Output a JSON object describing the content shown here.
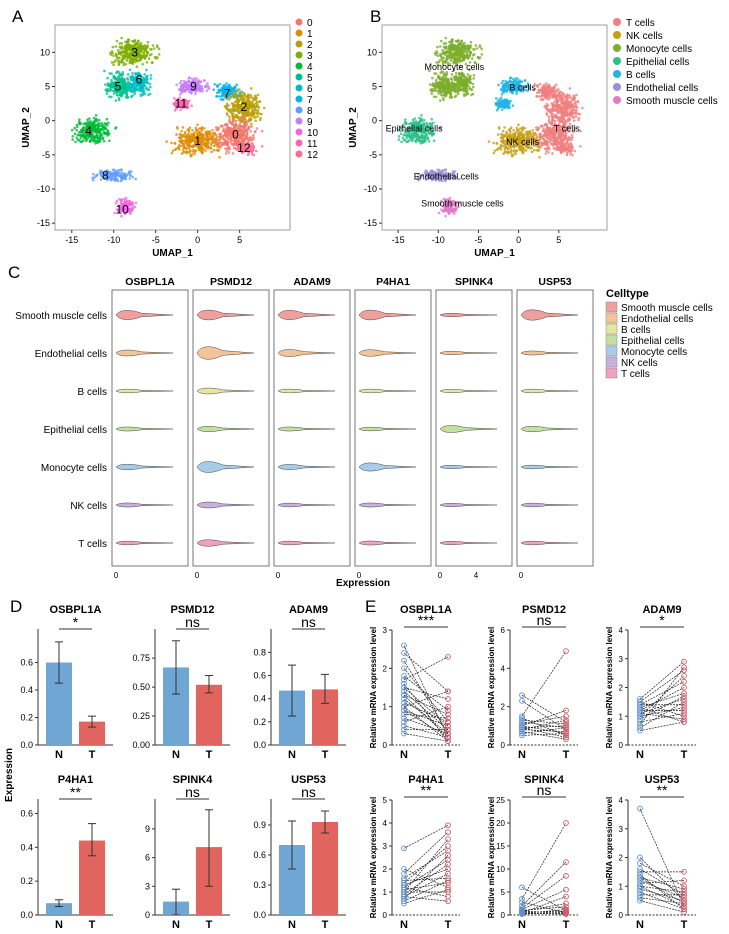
{
  "panels": {
    "A": "A",
    "B": "B",
    "C": "C",
    "D": "D",
    "E": "E"
  },
  "colors": {
    "bar_N": "#6fa6d3",
    "bar_T": "#e2645e",
    "legend_A": [
      "#f8766d",
      "#de8c00",
      "#b79f00",
      "#7cae00",
      "#00ba38",
      "#00c08b",
      "#00bfc4",
      "#00b4f0",
      "#619cff",
      "#c77cff",
      "#f564e3",
      "#ff64b0",
      "#ff6c91"
    ],
    "celltypes": [
      "#f08080",
      "#c5a015",
      "#7cae2a",
      "#2bbf8a",
      "#1fb5e6",
      "#9b8fd8",
      "#e07cc8"
    ],
    "violin": [
      "#f0a09c",
      "#f2c49a",
      "#e6e6a0",
      "#c4e0a0",
      "#a8cce8",
      "#c8b0dc",
      "#f0a0c0"
    ],
    "pair_N": "#5b8fd0",
    "pair_T": "#d05868"
  },
  "chart_data": [
    {
      "id": "A",
      "type": "scatter",
      "title": "",
      "xlabel": "UMAP_1",
      "ylabel": "UMAP_2",
      "xlim": [
        -17,
        11
      ],
      "ylim": [
        -16,
        14
      ],
      "xticks": [
        "-15",
        "-10",
        "-5",
        "0",
        "5"
      ],
      "yticks": [
        "-15",
        "-10",
        "-5",
        "0",
        "5",
        "10"
      ],
      "legend": [
        "0",
        "1",
        "2",
        "3",
        "4",
        "5",
        "6",
        "7",
        "8",
        "9",
        "10",
        "11",
        "12"
      ],
      "cluster_labels": [
        {
          "label": "3",
          "x": -7.5,
          "y": 10
        },
        {
          "label": "5",
          "x": -9.5,
          "y": 5
        },
        {
          "label": "6",
          "x": -7,
          "y": 6
        },
        {
          "label": "9",
          "x": -0.5,
          "y": 5
        },
        {
          "label": "7",
          "x": 3.5,
          "y": 4
        },
        {
          "label": "11",
          "x": -2,
          "y": 2.5
        },
        {
          "label": "2",
          "x": 5.5,
          "y": 2
        },
        {
          "label": "4",
          "x": -13,
          "y": -1.5
        },
        {
          "label": "1",
          "x": 0,
          "y": -3
        },
        {
          "label": "0",
          "x": 4.5,
          "y": -2
        },
        {
          "label": "12",
          "x": 5.5,
          "y": -4
        },
        {
          "label": "8",
          "x": -11,
          "y": -8
        },
        {
          "label": "10",
          "x": -9,
          "y": -13
        }
      ]
    },
    {
      "id": "B",
      "type": "scatter",
      "title": "",
      "xlabel": "UMAP_1",
      "ylabel": "UMAP_2",
      "xlim": [
        -17,
        11
      ],
      "ylim": [
        -16,
        14
      ],
      "xticks": [
        "-15",
        "-10",
        "-5",
        "0",
        "5"
      ],
      "yticks": [
        "-15",
        "-10",
        "-5",
        "0",
        "5",
        "10"
      ],
      "legend": [
        "T cells",
        "NK cells",
        "Monocyte cells",
        "Epithelial cells",
        "B cells",
        "Endothelial cells",
        "Smooth muscle cells"
      ],
      "cluster_labels": [
        {
          "label": "Monocyte cells",
          "x": -8,
          "y": 8
        },
        {
          "label": "B cells",
          "x": 0.5,
          "y": 5
        },
        {
          "label": "T cells",
          "x": 6,
          "y": -1
        },
        {
          "label": "Epithelial cells",
          "x": -13,
          "y": -1
        },
        {
          "label": "NK cells",
          "x": 0.5,
          "y": -3
        },
        {
          "label": "Endothelial cells",
          "x": -9,
          "y": -8
        },
        {
          "label": "Smooth muscle cells",
          "x": -7,
          "y": -12
        }
      ]
    },
    {
      "id": "C",
      "type": "violin",
      "xlabel": "Expression",
      "genes": [
        "OSBPL1A",
        "PSMD12",
        "ADAM9",
        "P4HA1",
        "SPINK4",
        "USP53"
      ],
      "celltypes": [
        "Smooth muscle cells",
        "Endothelial cells",
        "B cells",
        "Epithelial cells",
        "Monocyte cells",
        "NK cells",
        "T cells"
      ],
      "legend_title": "Celltype",
      "x_ticks": [
        [
          "0"
        ],
        [
          "0"
        ],
        [
          "0"
        ],
        [
          "0"
        ],
        [
          "0",
          "4"
        ],
        [
          "0"
        ]
      ],
      "widths": [
        [
          0.55,
          0.25,
          0.05,
          0.08,
          0.22,
          0.08,
          0.05
        ],
        [
          0.6,
          0.85,
          0.25,
          0.2,
          0.7,
          0.25,
          0.3
        ],
        [
          0.55,
          0.35,
          0.05,
          0.08,
          0.18,
          0.05,
          0.05
        ],
        [
          0.6,
          0.3,
          0.05,
          0.05,
          0.45,
          0.08,
          0.08
        ],
        [
          0.02,
          0.02,
          0.02,
          0.35,
          0.02,
          0.02,
          0.02
        ],
        [
          0.65,
          0.08,
          0.05,
          0.22,
          0.05,
          0.05,
          0.05
        ]
      ]
    },
    {
      "id": "D",
      "type": "bar",
      "ylabel": "Expression",
      "categories": [
        "N",
        "T"
      ],
      "charts": [
        {
          "gene": "OSBPL1A",
          "values": [
            0.6,
            0.17
          ],
          "errors": [
            [
              0.45,
              0.75
            ],
            [
              0.13,
              0.21
            ]
          ],
          "ylim": [
            0,
            0.8
          ],
          "yticks": [
            "0.0",
            "0.2",
            "0.4",
            "0.6"
          ],
          "sig": "*"
        },
        {
          "gene": "PSMD12",
          "values": [
            0.67,
            0.52
          ],
          "errors": [
            [
              0.44,
              0.9
            ],
            [
              0.45,
              0.6
            ]
          ],
          "ylim": [
            0,
            0.95
          ],
          "yticks": [
            "0.00",
            "0.25",
            "0.50",
            "0.75"
          ],
          "sig": "ns"
        },
        {
          "gene": "ADAM9",
          "values": [
            0.47,
            0.48
          ],
          "errors": [
            [
              0.25,
              0.69
            ],
            [
              0.36,
              0.61
            ]
          ],
          "ylim": [
            0,
            0.95
          ],
          "yticks": [
            "0.0",
            "0.2",
            "0.4",
            "0.6",
            "0.8"
          ],
          "sig": "ns"
        },
        {
          "gene": "P4HA1",
          "values": [
            0.07,
            0.44
          ],
          "errors": [
            [
              0.05,
              0.09
            ],
            [
              0.35,
              0.54
            ]
          ],
          "ylim": [
            0,
            0.65
          ],
          "yticks": [
            "0.0",
            "0.2",
            "0.4",
            "0.6"
          ],
          "sig": "**"
        },
        {
          "gene": "SPINK4",
          "values": [
            1.4,
            7.1
          ],
          "errors": [
            [
              0,
              2.7
            ],
            [
              3,
              11
            ]
          ],
          "ylim": [
            0,
            11.5
          ],
          "yticks": [
            "0",
            "3",
            "6",
            "9"
          ],
          "sig": "ns"
        },
        {
          "gene": "USP53",
          "values": [
            0.7,
            0.93
          ],
          "errors": [
            [
              0.46,
              0.94
            ],
            [
              0.82,
              1.04
            ]
          ],
          "ylim": [
            0,
            1.1
          ],
          "yticks": [
            "0.0",
            "0.3",
            "0.6",
            "0.9"
          ],
          "sig": "ns"
        }
      ]
    },
    {
      "id": "E",
      "type": "scatter",
      "ylabel": "Relative mRNA expression level",
      "categories": [
        "N",
        "T"
      ],
      "charts": [
        {
          "gene": "OSBPL1A",
          "sig": "***",
          "ylim": [
            0,
            3
          ],
          "yticks": [
            "0",
            "1",
            "2",
            "3"
          ],
          "pairs": [
            [
              2.6,
              0.2
            ],
            [
              2.4,
              1.4
            ],
            [
              2.2,
              0.3
            ],
            [
              2.0,
              0.6
            ],
            [
              1.8,
              0.9
            ],
            [
              1.7,
              2.3
            ],
            [
              1.6,
              0.1
            ],
            [
              1.5,
              0.5
            ],
            [
              1.5,
              1.2
            ],
            [
              1.4,
              0.4
            ],
            [
              1.3,
              0.2
            ],
            [
              1.3,
              0.8
            ],
            [
              1.2,
              0.3
            ],
            [
              1.1,
              0.6
            ],
            [
              1.0,
              0.1
            ],
            [
              1.0,
              1.4
            ],
            [
              0.9,
              0.5
            ],
            [
              0.9,
              0.2
            ],
            [
              0.8,
              0.7
            ],
            [
              0.7,
              0.3
            ],
            [
              0.6,
              1.0
            ],
            [
              0.5,
              0.2
            ],
            [
              0.4,
              0.4
            ],
            [
              0.3,
              0.1
            ]
          ]
        },
        {
          "gene": "PSMD12",
          "sig": "ns",
          "ylim": [
            0,
            6
          ],
          "yticks": [
            "0",
            "2",
            "4",
            "6"
          ],
          "pairs": [
            [
              2.6,
              1.2
            ],
            [
              2.3,
              0.8
            ],
            [
              1.5,
              4.9
            ],
            [
              1.4,
              0.5
            ],
            [
              1.3,
              1.1
            ],
            [
              1.2,
              0.9
            ],
            [
              1.1,
              1.5
            ],
            [
              1.0,
              0.6
            ],
            [
              1.0,
              1.8
            ],
            [
              0.9,
              0.4
            ],
            [
              0.9,
              1.0
            ],
            [
              0.8,
              0.7
            ],
            [
              0.8,
              1.3
            ],
            [
              0.7,
              0.3
            ],
            [
              0.6,
              0.9
            ],
            [
              0.5,
              0.6
            ]
          ]
        },
        {
          "gene": "ADAM9",
          "sig": "*",
          "ylim": [
            0,
            4
          ],
          "yticks": [
            "0",
            "1",
            "2",
            "3",
            "4"
          ],
          "pairs": [
            [
              1.6,
              2.9
            ],
            [
              1.5,
              1.0
            ],
            [
              1.5,
              2.6
            ],
            [
              1.4,
              2.2
            ],
            [
              1.4,
              1.4
            ],
            [
              1.3,
              1.8
            ],
            [
              1.3,
              0.8
            ],
            [
              1.2,
              2.0
            ],
            [
              1.2,
              1.2
            ],
            [
              1.1,
              1.6
            ],
            [
              1.1,
              0.9
            ],
            [
              1.0,
              2.4
            ],
            [
              1.0,
              1.3
            ],
            [
              0.9,
              1.7
            ],
            [
              0.8,
              1.1
            ],
            [
              0.7,
              2.7
            ],
            [
              0.6,
              1.5
            ],
            [
              0.5,
              0.8
            ]
          ]
        },
        {
          "gene": "P4HA1",
          "sig": "**",
          "ylim": [
            0,
            5
          ],
          "yticks": [
            "0",
            "1",
            "2",
            "3",
            "4",
            "5"
          ],
          "pairs": [
            [
              2.9,
              3.9
            ],
            [
              2.0,
              1.2
            ],
            [
              1.8,
              3.6
            ],
            [
              1.6,
              2.8
            ],
            [
              1.5,
              1.6
            ],
            [
              1.4,
              3.0
            ],
            [
              1.3,
              2.0
            ],
            [
              1.2,
              0.8
            ],
            [
              1.2,
              2.4
            ],
            [
              1.1,
              1.4
            ],
            [
              1.0,
              3.3
            ],
            [
              1.0,
              1.0
            ],
            [
              0.9,
              2.2
            ],
            [
              0.8,
              1.8
            ],
            [
              0.8,
              0.6
            ],
            [
              0.7,
              2.6
            ],
            [
              0.6,
              1.5
            ],
            [
              0.5,
              1.1
            ]
          ]
        },
        {
          "gene": "SPINK4",
          "sig": "ns",
          "ylim": [
            0,
            25
          ],
          "yticks": [
            "0",
            "5",
            "10",
            "15",
            "20",
            "25"
          ],
          "pairs": [
            [
              6.0,
              1.0
            ],
            [
              3.5,
              20.0
            ],
            [
              2.8,
              0.5
            ],
            [
              2.0,
              11.5
            ],
            [
              1.5,
              8.5
            ],
            [
              1.2,
              5.5
            ],
            [
              1.0,
              1.8
            ],
            [
              0.9,
              0.3
            ],
            [
              0.8,
              2.5
            ],
            [
              0.6,
              0.8
            ],
            [
              0.5,
              4.0
            ],
            [
              0.4,
              0.2
            ],
            [
              0.3,
              1.2
            ],
            [
              0.2,
              0.6
            ]
          ]
        },
        {
          "gene": "USP53",
          "sig": "**",
          "ylim": [
            0,
            4
          ],
          "yticks": [
            "0",
            "1",
            "2",
            "3",
            "4"
          ],
          "pairs": [
            [
              3.7,
              0.3
            ],
            [
              2.0,
              0.5
            ],
            [
              1.8,
              1.0
            ],
            [
              1.6,
              0.7
            ],
            [
              1.5,
              1.5
            ],
            [
              1.4,
              0.2
            ],
            [
              1.3,
              0.9
            ],
            [
              1.3,
              0.4
            ],
            [
              1.2,
              0.6
            ],
            [
              1.1,
              1.2
            ],
            [
              1.0,
              0.3
            ],
            [
              1.0,
              0.8
            ],
            [
              0.9,
              0.5
            ],
            [
              0.8,
              0.2
            ],
            [
              0.7,
              0.7
            ],
            [
              0.6,
              0.4
            ],
            [
              0.5,
              0.1
            ]
          ]
        }
      ]
    }
  ]
}
